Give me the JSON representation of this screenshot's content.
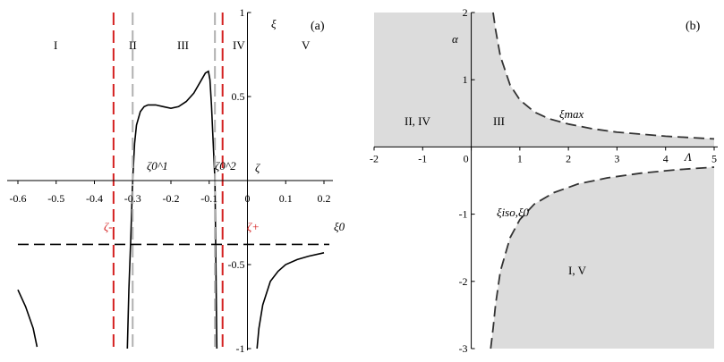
{
  "colors": {
    "curve": "#000000",
    "red_line": "#d42020",
    "grey_line": "#b0b0b0",
    "shade": "#dcdcdc",
    "dash_curve": "#333333"
  },
  "panel_a": {
    "label": "(a)",
    "axis_x_label": "ζ",
    "axis_y_label": "ξ",
    "regions": [
      "I",
      "II",
      "III",
      "IV",
      "V"
    ],
    "xi0_label": "ξ0",
    "zeta_minus_label": "ζ-",
    "zeta_plus_label": "ζ+",
    "zeta01_label": "ζ0^1",
    "zeta02_label": "ζ0^2",
    "xticks": [
      "-0.6",
      "-0.5",
      "-0.4",
      "-0.3",
      "-0.2",
      "-0.1",
      "0",
      "0.1",
      "0.2"
    ],
    "yticks": [
      "1",
      "0.5",
      "-0.5",
      "-1"
    ]
  },
  "panel_b": {
    "label": "(b)",
    "axis_x_label": "Λ",
    "axis_y_label": "α",
    "region_upper_left": "II, IV",
    "region_upper_right": "III",
    "region_lower": "I, V",
    "xi_max_label": "ξmax",
    "xi_iso_label": "ξiso,ξ0",
    "xticks": [
      "-2",
      "-1",
      "0",
      "1",
      "2",
      "3",
      "4",
      "5"
    ],
    "yticks": [
      "2",
      "1",
      "-1",
      "-2",
      "-3"
    ]
  },
  "chart_data": [
    {
      "type": "line",
      "title": "(a)",
      "xlabel": "ζ",
      "ylabel": "ξ",
      "xlim": [
        -0.6,
        0.2
      ],
      "ylim": [
        -1,
        1
      ],
      "vertical_lines": [
        {
          "x": -0.35,
          "style": "red-dashed",
          "label": "ζ-"
        },
        {
          "x": -0.3,
          "style": "grey-dashed",
          "label": "ζ0^1"
        },
        {
          "x": -0.085,
          "style": "grey-dashed",
          "label": "ζ0^2"
        },
        {
          "x": -0.065,
          "style": "red-dashed",
          "label": "ζ+"
        }
      ],
      "horizontal_lines": [
        {
          "y": -0.38,
          "style": "black-dashed",
          "label": "ξ0"
        }
      ],
      "regions": [
        "I",
        "II",
        "III",
        "IV",
        "V"
      ],
      "series": [
        {
          "x": [
            -0.6,
            -0.58,
            -0.56,
            -0.55
          ],
          "y": [
            -0.65,
            -0.75,
            -0.88,
            -0.99
          ]
        },
        {
          "x": [
            -0.314,
            -0.31,
            -0.305,
            -0.3,
            -0.295,
            -0.29,
            -0.28,
            -0.27,
            -0.26,
            -0.24,
            -0.22,
            -0.2,
            -0.18,
            -0.16,
            -0.14,
            -0.12,
            -0.11,
            -0.102,
            -0.098,
            -0.094,
            -0.09,
            -0.085,
            -0.08
          ],
          "y": [
            -1.0,
            -0.65,
            -0.35,
            0.0,
            0.22,
            0.33,
            0.41,
            0.44,
            0.45,
            0.45,
            0.44,
            0.43,
            0.44,
            0.47,
            0.52,
            0.6,
            0.64,
            0.65,
            0.6,
            0.45,
            0.25,
            0.0,
            -1.0
          ]
        },
        {
          "x": [
            0.025,
            0.03,
            0.04,
            0.06,
            0.08,
            0.1,
            0.13,
            0.16,
            0.2
          ],
          "y": [
            -1.0,
            -0.88,
            -0.74,
            -0.6,
            -0.54,
            -0.5,
            -0.47,
            -0.45,
            -0.43
          ]
        }
      ]
    },
    {
      "type": "area",
      "title": "(b)",
      "xlabel": "Λ",
      "ylabel": "α",
      "xlim": [
        -2,
        5
      ],
      "ylim": [
        -3,
        2
      ],
      "series": [
        {
          "name": "ξmax",
          "x": [
            0.45,
            0.5,
            0.6,
            0.8,
            1.0,
            1.3,
            1.6,
            2.0,
            2.5,
            3.0,
            3.5,
            4.0,
            4.5,
            5.0
          ],
          "y": [
            2.0,
            1.75,
            1.35,
            0.92,
            0.7,
            0.52,
            0.42,
            0.34,
            0.27,
            0.22,
            0.19,
            0.16,
            0.14,
            0.12
          ]
        },
        {
          "name": "ξiso,ξ0",
          "x": [
            0.4,
            0.45,
            0.5,
            0.6,
            0.8,
            1.0,
            1.3,
            1.7,
            2.2,
            2.8,
            3.5,
            4.2,
            5.0
          ],
          "y": [
            -3.0,
            -2.7,
            -2.35,
            -1.85,
            -1.35,
            -1.08,
            -0.85,
            -0.68,
            -0.55,
            -0.46,
            -0.39,
            -0.34,
            -0.3
          ]
        }
      ],
      "regions": [
        "II, IV",
        "III",
        "I, V"
      ]
    }
  ]
}
